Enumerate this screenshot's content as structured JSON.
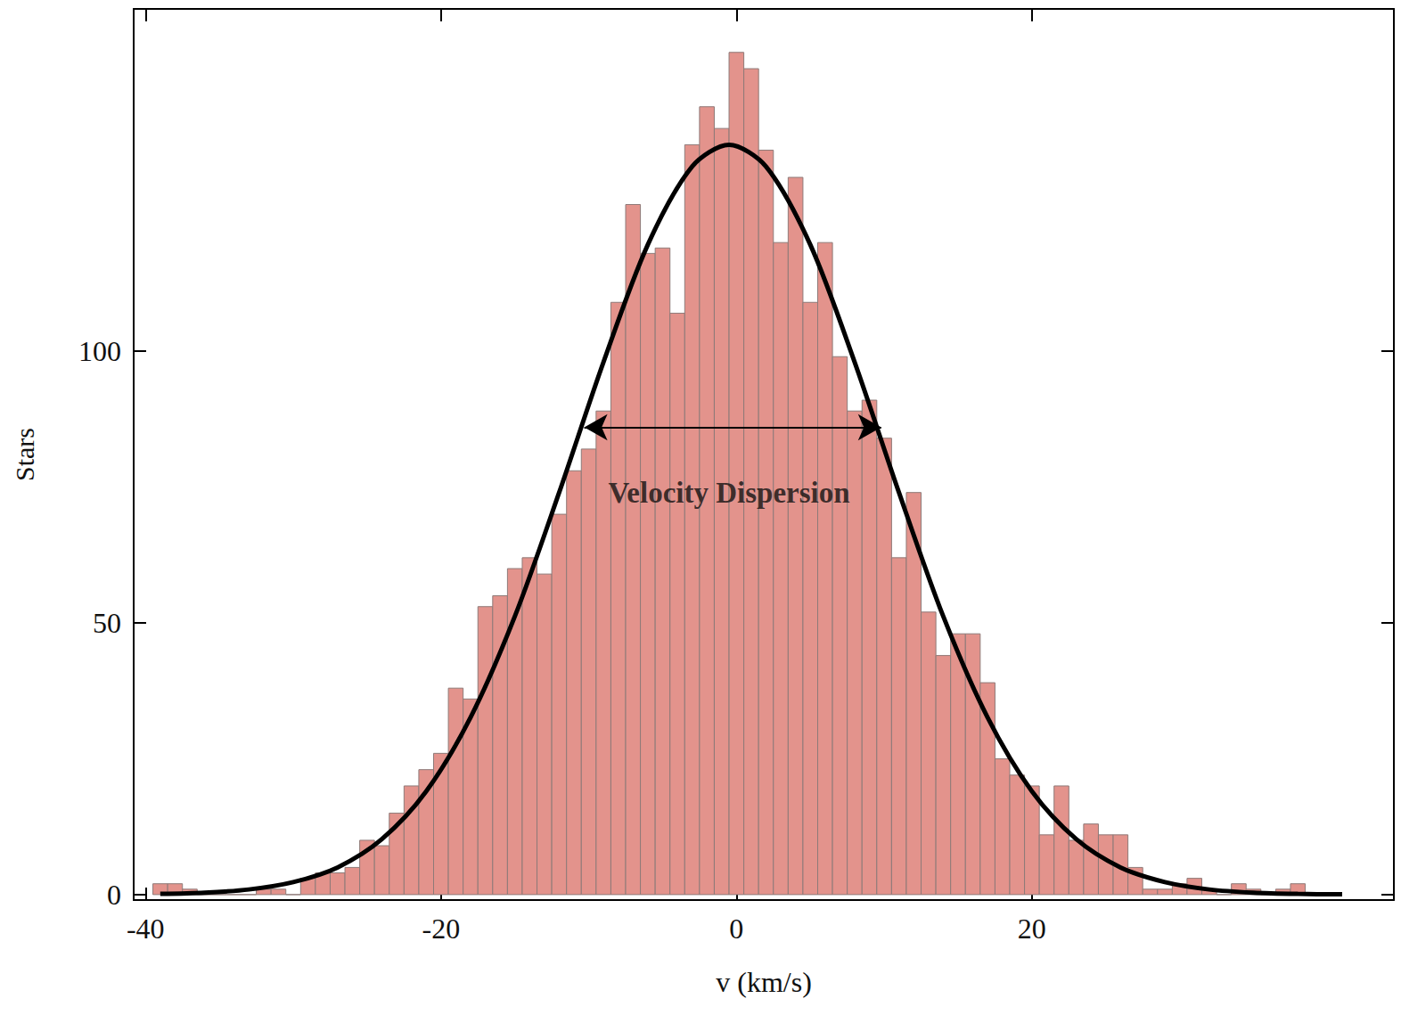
{
  "chart_data": {
    "type": "histogram",
    "x_label": "v (km/s)",
    "y_label": "Stars",
    "color": "#e3938c",
    "bins": [
      -39.5,
      -38.5,
      -37.5,
      -36.5,
      -35.5,
      -34.5,
      -33.5,
      -32.5,
      -31.5,
      -30.5,
      -29.5,
      -28.5,
      -27.5,
      -26.5,
      -25.5,
      -24.5,
      -23.5,
      -22.5,
      -21.5,
      -20.5,
      -19.5,
      -18.5,
      -17.5,
      -16.5,
      -15.5,
      -14.5,
      -13.5,
      -12.5,
      -11.5,
      -10.5,
      -9.5,
      -8.5,
      -7.5,
      -6.5,
      -5.5,
      -4.5,
      -3.5,
      -2.5,
      -1.5,
      -0.5,
      0.5,
      1.5,
      2.5,
      3.5,
      4.5,
      5.5,
      6.5,
      7.5,
      8.5,
      9.5,
      10.5,
      11.5,
      12.5,
      13.5,
      14.5,
      15.5,
      16.5,
      17.5,
      18.5,
      19.5,
      20.5,
      21.5,
      22.5,
      23.5,
      24.5,
      25.5,
      26.5,
      27.5,
      28.5,
      29.5,
      30.5,
      31.5,
      32.5,
      33.5,
      34.5,
      35.5,
      36.5,
      37.5,
      38.5,
      39.5
    ],
    "values": [
      2,
      2,
      1,
      0,
      0,
      0,
      0,
      1,
      1,
      0,
      3,
      4,
      4,
      5,
      10,
      9,
      15,
      20,
      23,
      26,
      38,
      36,
      53,
      55,
      60,
      62,
      59,
      70,
      78,
      82,
      89,
      109,
      127,
      118,
      119,
      107,
      138,
      145,
      141,
      155,
      152,
      137,
      120,
      132,
      109,
      120,
      99,
      89,
      91,
      84,
      62,
      74,
      52,
      44,
      48,
      48,
      39,
      25,
      22,
      20,
      11,
      20,
      10,
      13,
      11,
      11,
      5,
      1,
      1,
      2,
      3,
      1,
      0,
      2,
      1,
      0,
      1,
      2,
      0
    ],
    "fit": {
      "type": "line",
      "color": "#000000",
      "x": [
        -39,
        -36,
        -33,
        -30,
        -27,
        -24,
        -21,
        -18,
        -15,
        -12,
        -9,
        -6,
        -3,
        -0.5,
        2,
        5,
        8,
        11,
        14,
        17,
        20,
        23,
        26,
        29,
        32,
        35,
        38,
        41
      ],
      "values": [
        0.13,
        0.36,
        0.95,
        2.3,
        5,
        10.2,
        19,
        32.6,
        51.2,
        74,
        98,
        119.6,
        134,
        138,
        134,
        119.6,
        98,
        74,
        51.2,
        32.6,
        19,
        10.2,
        5,
        2.3,
        0.95,
        0.36,
        0.13,
        0.05
      ]
    },
    "annotations": [
      {
        "text": "Velocity Dispersion",
        "x": -0.5,
        "y": 74,
        "arrow": {
          "x0": -10.3,
          "x1": 9.8,
          "y": 86
        }
      }
    ],
    "xlim": [
      -40.8,
      44.5
    ],
    "xticks": [
      -40,
      -20,
      0,
      20
    ],
    "ylim": [
      -1,
      163
    ],
    "yticks": [
      0,
      50,
      100
    ],
    "grid": false
  }
}
